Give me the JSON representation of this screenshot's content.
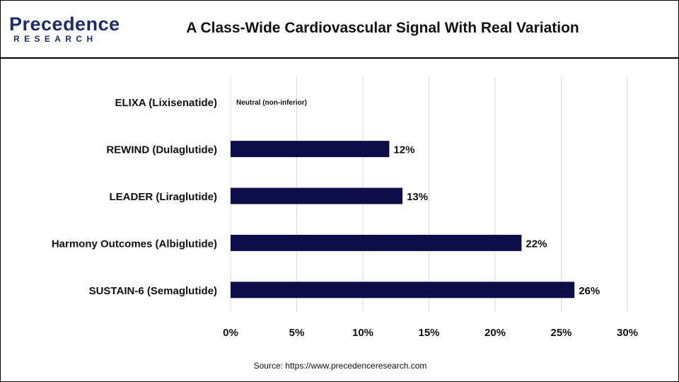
{
  "header": {
    "logo_brand": "Precedence",
    "logo_sub": "RESEARCH",
    "title": "A Class-Wide Cardiovascular Signal With Real Variation"
  },
  "footer": {
    "source": "Source: https://www.precedenceresearch.com"
  },
  "colors": {
    "bar": "#0d0d4a",
    "grid": "#d9d9d9",
    "brand": "#1c2b6e"
  },
  "chart_data": {
    "type": "bar",
    "orientation": "horizontal",
    "categories": [
      "ELIXA (Lixisenatide)",
      "REWIND (Dulaglutide)",
      "LEADER (Liraglutide)",
      "Harmony Outcomes (Albiglutide)",
      "SUSTAIN-6 (Semaglutide)"
    ],
    "values": [
      0,
      12,
      13,
      22,
      26
    ],
    "data_labels": [
      "Neutral (non-inferior)",
      "12%",
      "13%",
      "22%",
      "26%"
    ],
    "xlim": [
      0,
      30
    ],
    "xticks": [
      0,
      5,
      10,
      15,
      20,
      25,
      30
    ],
    "xtick_labels": [
      "0%",
      "5%",
      "10%",
      "15%",
      "20%",
      "25%",
      "30%"
    ],
    "grid": "vertical",
    "legend": "none"
  }
}
